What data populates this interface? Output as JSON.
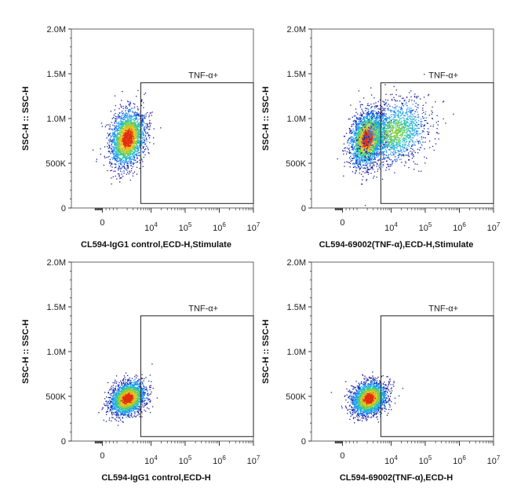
{
  "chart_data": [
    {
      "type": "scatter",
      "subtype": "flow-cytometry-density-dot-plot",
      "xlabel": "CL594-IgG1 control,ECD-H,Stimulate",
      "ylabel": "SSC-H :: SSC-H",
      "x_scale": "biexponential",
      "x_ticks": [
        "0",
        "10^4",
        "10^5",
        "10^6",
        "10^7"
      ],
      "y_ticks": [
        "0",
        "500K",
        "1.0M",
        "1.5M",
        "2.0M"
      ],
      "ylim": [
        0,
        2000000
      ],
      "gate": {
        "name": "TNF-α+",
        "x_min": 5000,
        "x_max": 10000000,
        "y_min": 50000,
        "y_max": 1400000
      },
      "populations": [
        {
          "x_center": 2000,
          "y_center": 780000,
          "y_sd": 150000,
          "density": "high"
        }
      ]
    },
    {
      "type": "scatter",
      "subtype": "flow-cytometry-density-dot-plot",
      "xlabel": "CL594-69002(TNF-α),ECD-H,Stimulate",
      "ylabel": "SSC-H :: SSC-H",
      "x_scale": "biexponential",
      "x_ticks": [
        "0",
        "10^4",
        "10^5",
        "10^6",
        "10^7"
      ],
      "y_ticks": [
        "0",
        "500K",
        "1.0M",
        "1.5M",
        "2.0M"
      ],
      "ylim": [
        0,
        2000000
      ],
      "gate": {
        "name": "TNF-α+",
        "x_min": 5000,
        "x_max": 10000000,
        "y_min": 50000,
        "y_max": 1400000
      },
      "populations": [
        {
          "x_center": 2000,
          "y_center": 780000,
          "y_sd": 150000,
          "density": "high"
        },
        {
          "x_center": 12000,
          "y_center": 850000,
          "y_sd": 170000,
          "density": "medium"
        }
      ]
    },
    {
      "type": "scatter",
      "subtype": "flow-cytometry-density-dot-plot",
      "xlabel": "CL594-IgG1 control,ECD-H",
      "ylabel": "SSC-H :: SSC-H",
      "x_scale": "biexponential",
      "x_ticks": [
        "0",
        "10^4",
        "10^5",
        "10^6",
        "10^7"
      ],
      "y_ticks": [
        "0",
        "500K",
        "1.0M",
        "1.5M",
        "2.0M"
      ],
      "ylim": [
        0,
        2000000
      ],
      "gate": {
        "name": "TNF-α+",
        "x_min": 5000,
        "x_max": 10000000,
        "y_min": 50000,
        "y_max": 1400000
      },
      "populations": [
        {
          "x_center": 2000,
          "y_center": 480000,
          "y_sd": 90000,
          "density": "high"
        }
      ]
    },
    {
      "type": "scatter",
      "subtype": "flow-cytometry-density-dot-plot",
      "xlabel": "CL594-69002(TNF-α),ECD-H",
      "ylabel": "SSC-H :: SSC-H",
      "x_scale": "biexponential",
      "x_ticks": [
        "0",
        "10^4",
        "10^5",
        "10^6",
        "10^7"
      ],
      "y_ticks": [
        "0",
        "500K",
        "1.0M",
        "1.5M",
        "2.0M"
      ],
      "ylim": [
        0,
        2000000
      ],
      "gate": {
        "name": "TNF-α+",
        "x_min": 5000,
        "x_max": 10000000,
        "y_min": 50000,
        "y_max": 1400000
      },
      "populations": [
        {
          "x_center": 2200,
          "y_center": 480000,
          "y_sd": 90000,
          "density": "high"
        }
      ]
    }
  ],
  "colors": {
    "density_low": "#1a1aa0",
    "density_mid_low": "#1e90ff",
    "density_mid": "#20c0c0",
    "density_mid_high": "#7fd040",
    "density_high": "#f0c020",
    "density_peak": "#e03010",
    "axis": "#333333",
    "gate": "#222222"
  }
}
